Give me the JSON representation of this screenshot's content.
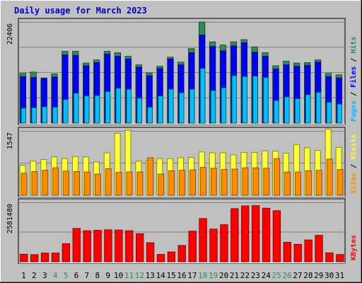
{
  "title": "Daily usage for March 2023",
  "colors": {
    "background": "#c0c0c0",
    "plot_bg": "#c0c0c0",
    "title": "#0000cc",
    "hits": "#2e8b57",
    "files": "#0000ff",
    "pages": "#00bfff",
    "visits": "#ffff33",
    "sites": "#ff8c00",
    "kbytes": "#ff0000",
    "weekend_day": "#2e8b57",
    "weekday": "#000000"
  },
  "chart_data": [
    {
      "type": "bar",
      "panel": "hits-files-pages",
      "ylabel_parts": [
        "Pages",
        "Files",
        "Hits"
      ],
      "ytick_label": "22406",
      "ylim": [
        0,
        22406
      ],
      "categories": [
        "1",
        "2",
        "3",
        "4",
        "5",
        "6",
        "7",
        "8",
        "9",
        "10",
        "11",
        "12",
        "13",
        "14",
        "15",
        "16",
        "17",
        "18",
        "19",
        "20",
        "21",
        "22",
        "23",
        "24",
        "25",
        "26",
        "27",
        "28",
        "29",
        "30",
        "31"
      ],
      "weekend_days": [
        "4",
        "5",
        "11",
        "12",
        "18",
        "19",
        "25",
        "26"
      ],
      "series": [
        {
          "name": "Hits",
          "values": [
            11000,
            11300,
            10000,
            10900,
            15900,
            15900,
            13300,
            14000,
            15900,
            15600,
            14800,
            12900,
            11100,
            12600,
            14600,
            13500,
            16500,
            22400,
            18000,
            17300,
            18000,
            18500,
            16900,
            15600,
            12700,
            13700,
            13300,
            13400,
            14000,
            11000,
            10700
          ]
        },
        {
          "name": "Files",
          "values": [
            10300,
            10100,
            9900,
            10200,
            15100,
            15000,
            12700,
            13400,
            15300,
            14800,
            14200,
            12400,
            10500,
            12100,
            14200,
            12900,
            15600,
            19500,
            17000,
            16000,
            17100,
            17800,
            15700,
            14800,
            12000,
            12900,
            12600,
            12800,
            13500,
            10300,
            10000
          ]
        },
        {
          "name": "Pages",
          "values": [
            3300,
            3400,
            3600,
            3500,
            5200,
            6600,
            6000,
            6100,
            7000,
            7700,
            7500,
            5500,
            3500,
            6000,
            7500,
            6700,
            7500,
            12100,
            7200,
            7800,
            10500,
            10300,
            10400,
            10100,
            5000,
            5800,
            5400,
            6300,
            6800,
            4600,
            4200
          ]
        }
      ]
    },
    {
      "type": "bar",
      "panel": "visits-sites",
      "ylabel_parts": [
        "Sites",
        "Visits"
      ],
      "ytick_label": "1547",
      "ylim": [
        0,
        1547
      ],
      "categories": [
        "1",
        "2",
        "3",
        "4",
        "5",
        "6",
        "7",
        "8",
        "9",
        "10",
        "11",
        "12",
        "13",
        "14",
        "15",
        "16",
        "17",
        "18",
        "19",
        "20",
        "21",
        "22",
        "23",
        "24",
        "25",
        "26",
        "27",
        "28",
        "29",
        "30",
        "31"
      ],
      "series": [
        {
          "name": "Visits",
          "values": [
            720,
            820,
            860,
            920,
            880,
            930,
            920,
            800,
            1020,
            1490,
            1560,
            820,
            840,
            880,
            880,
            900,
            910,
            1040,
            1020,
            1020,
            970,
            1030,
            1030,
            1070,
            1060,
            1010,
            1220,
            1140,
            1080,
            1590,
            1150
          ]
        },
        {
          "name": "Sites",
          "values": [
            530,
            570,
            600,
            660,
            580,
            570,
            560,
            510,
            640,
            550,
            560,
            560,
            900,
            510,
            590,
            600,
            610,
            670,
            650,
            620,
            630,
            660,
            660,
            650,
            880,
            560,
            560,
            590,
            600,
            870,
            620
          ]
        }
      ]
    },
    {
      "type": "bar",
      "panel": "kbytes",
      "ylabel_parts": [
        "KBytes"
      ],
      "ytick_label": "2581480",
      "ylim": [
        0,
        2581480
      ],
      "categories": [
        "1",
        "2",
        "3",
        "4",
        "5",
        "6",
        "7",
        "8",
        "9",
        "10",
        "11",
        "12",
        "13",
        "14",
        "15",
        "16",
        "17",
        "18",
        "19",
        "20",
        "21",
        "22",
        "23",
        "24",
        "25",
        "26",
        "27",
        "28",
        "29",
        "30",
        "31"
      ],
      "series": [
        {
          "name": "KBytes",
          "values": [
            330000,
            310000,
            380000,
            380000,
            790000,
            1450000,
            1350000,
            1370000,
            1390000,
            1380000,
            1350000,
            1220000,
            830000,
            320000,
            430000,
            710000,
            1330000,
            1880000,
            1420000,
            1610000,
            2310000,
            2430000,
            2440000,
            2330000,
            2220000,
            850000,
            760000,
            950000,
            1150000,
            390000,
            320000
          ]
        }
      ]
    }
  ]
}
